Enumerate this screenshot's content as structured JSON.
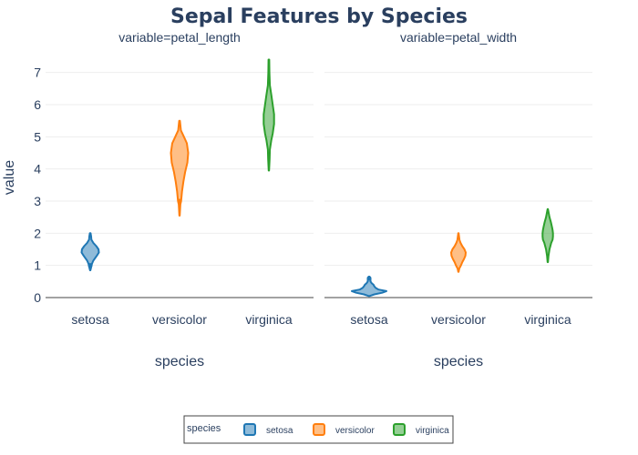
{
  "chart_data": {
    "type": "violin",
    "title": "Sepal Features by Species",
    "xlabel": "species",
    "ylabel": "value",
    "ylim": [
      0,
      7.5
    ],
    "yticks": [
      0,
      1,
      2,
      3,
      4,
      5,
      6,
      7
    ],
    "categories": [
      "setosa",
      "versicolor",
      "virginica"
    ],
    "grid": true,
    "colors": {
      "setosa": "#1f77b4",
      "versicolor": "#ff7f0e",
      "virginica": "#2ca02c"
    },
    "legend": {
      "title": "species",
      "position": "bottom-center",
      "items": [
        "setosa",
        "versicolor",
        "virginica"
      ]
    },
    "facets": [
      {
        "title": "variable=petal_length",
        "violins": [
          {
            "category": "setosa",
            "min": 0.85,
            "max": 2.0,
            "profile": [
              [
                0.85,
                0.01
              ],
              [
                0.95,
                0.06
              ],
              [
                1.05,
                0.1
              ],
              [
                1.15,
                0.18
              ],
              [
                1.3,
                0.38
              ],
              [
                1.4,
                0.5
              ],
              [
                1.5,
                0.48
              ],
              [
                1.6,
                0.35
              ],
              [
                1.7,
                0.18
              ],
              [
                1.8,
                0.07
              ],
              [
                1.9,
                0.05
              ],
              [
                2.0,
                0.02
              ]
            ],
            "outliers": [
              1.0
            ]
          },
          {
            "category": "versicolor",
            "min": 2.55,
            "max": 5.5,
            "profile": [
              [
                2.55,
                0.01
              ],
              [
                2.9,
                0.05
              ],
              [
                3.0,
                0.09
              ],
              [
                3.3,
                0.14
              ],
              [
                3.6,
                0.22
              ],
              [
                3.9,
                0.32
              ],
              [
                4.2,
                0.45
              ],
              [
                4.5,
                0.5
              ],
              [
                4.8,
                0.42
              ],
              [
                5.0,
                0.25
              ],
              [
                5.2,
                0.08
              ],
              [
                5.5,
                0.02
              ]
            ],
            "outliers": [
              3.0
            ]
          },
          {
            "category": "virginica",
            "min": 3.95,
            "max": 7.4,
            "profile": [
              [
                3.95,
                0.01
              ],
              [
                4.3,
                0.04
              ],
              [
                4.6,
                0.06
              ],
              [
                4.9,
                0.14
              ],
              [
                5.1,
                0.22
              ],
              [
                5.4,
                0.3
              ],
              [
                5.7,
                0.3
              ],
              [
                6.0,
                0.22
              ],
              [
                6.3,
                0.14
              ],
              [
                6.6,
                0.06
              ],
              [
                7.0,
                0.03
              ],
              [
                7.4,
                0.02
              ]
            ],
            "outliers": []
          }
        ]
      },
      {
        "title": "variable=petal_width",
        "violins": [
          {
            "category": "setosa",
            "min": 0.05,
            "max": 0.65,
            "profile": [
              [
                0.05,
                0.04
              ],
              [
                0.1,
                0.3
              ],
              [
                0.15,
                0.75
              ],
              [
                0.2,
                1.0
              ],
              [
                0.25,
                0.55
              ],
              [
                0.3,
                0.38
              ],
              [
                0.35,
                0.3
              ],
              [
                0.4,
                0.25
              ],
              [
                0.45,
                0.14
              ],
              [
                0.5,
                0.08
              ],
              [
                0.6,
                0.08
              ],
              [
                0.65,
                0.02
              ]
            ],
            "outliers": [
              0.6
            ]
          },
          {
            "category": "versicolor",
            "min": 0.8,
            "max": 2.0,
            "profile": [
              [
                0.8,
                0.01
              ],
              [
                0.9,
                0.05
              ],
              [
                1.0,
                0.14
              ],
              [
                1.1,
                0.22
              ],
              [
                1.2,
                0.32
              ],
              [
                1.3,
                0.4
              ],
              [
                1.4,
                0.42
              ],
              [
                1.5,
                0.35
              ],
              [
                1.6,
                0.22
              ],
              [
                1.7,
                0.12
              ],
              [
                1.8,
                0.06
              ],
              [
                2.0,
                0.01
              ]
            ],
            "outliers": []
          },
          {
            "category": "virginica",
            "min": 1.1,
            "max": 2.75,
            "profile": [
              [
                1.1,
                0.01
              ],
              [
                1.3,
                0.04
              ],
              [
                1.5,
                0.1
              ],
              [
                1.7,
                0.2
              ],
              [
                1.8,
                0.28
              ],
              [
                1.9,
                0.3
              ],
              [
                2.0,
                0.3
              ],
              [
                2.1,
                0.28
              ],
              [
                2.2,
                0.24
              ],
              [
                2.35,
                0.18
              ],
              [
                2.5,
                0.1
              ],
              [
                2.75,
                0.01
              ]
            ],
            "outliers": []
          }
        ]
      }
    ]
  }
}
